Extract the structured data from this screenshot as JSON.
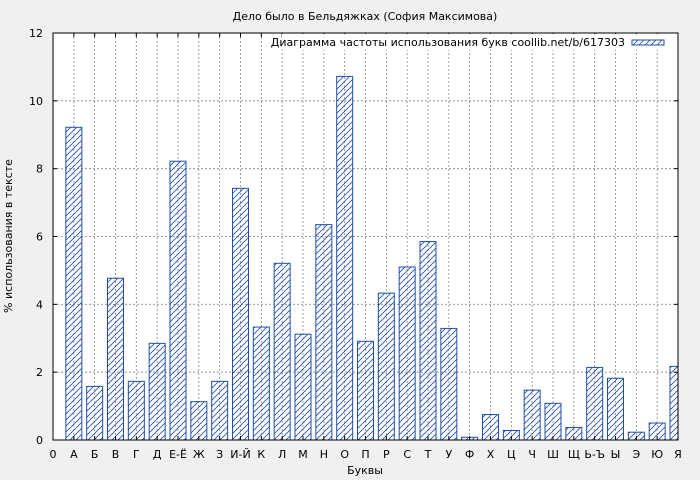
{
  "chart_data": {
    "type": "bar",
    "title": "Дело было в Бельдяжках (София  Максимова)",
    "xlabel": "Буквы",
    "ylabel": "% использования в тексте",
    "legend": "Диаграмма частоты использования букв coollib.net/b/617303",
    "legend_position": "top-right",
    "grid": true,
    "ylim": [
      0,
      12
    ],
    "yticks": [
      0,
      2,
      4,
      6,
      8,
      10,
      12
    ],
    "xticks": [
      "0",
      "А",
      "Б",
      "В",
      "Г",
      "Д",
      "Е-Ё",
      "Ж",
      "З",
      "И-Й",
      "К",
      "Л",
      "М",
      "Н",
      "О",
      "П",
      "Р",
      "С",
      "Т",
      "У",
      "Ф",
      "Х",
      "Ц",
      "Ч",
      "Ш",
      "Щ",
      "Ь-Ъ",
      "Ы",
      "Э",
      "Ю",
      "Я"
    ],
    "categories": [
      "А",
      "Б",
      "В",
      "Г",
      "Д",
      "Е-Ё",
      "Ж",
      "З",
      "И-Й",
      "К",
      "Л",
      "М",
      "Н",
      "О",
      "П",
      "Р",
      "С",
      "Т",
      "У",
      "Ф",
      "Х",
      "Ц",
      "Ч",
      "Ш",
      "Щ",
      "Ь-Ъ",
      "Ы",
      "Э",
      "Ю",
      "Я"
    ],
    "values": [
      9.22,
      1.58,
      4.77,
      1.73,
      2.85,
      8.22,
      1.13,
      1.73,
      7.42,
      3.33,
      5.21,
      3.12,
      6.35,
      10.72,
      2.91,
      4.33,
      5.1,
      5.85,
      3.29,
      0.08,
      0.75,
      0.28,
      1.47,
      1.08,
      0.37,
      2.14,
      1.82,
      0.23,
      0.5,
      2.17
    ],
    "bar_color": "#1f4fa8",
    "background_color": "#f0f0f0",
    "plot_background": "#ffffff"
  }
}
